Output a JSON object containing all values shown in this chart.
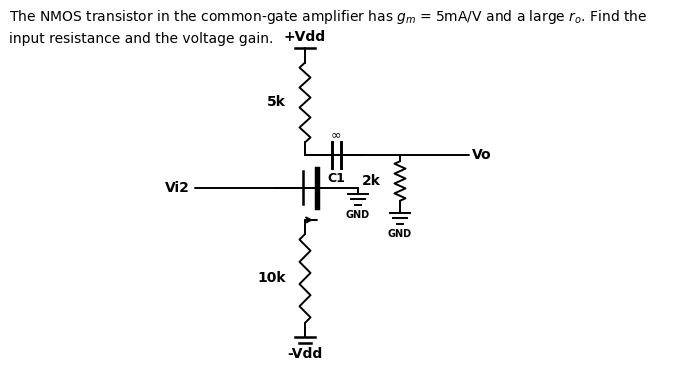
{
  "bg_color": "#ffffff",
  "line_color": "#000000",
  "resistor_5k_label": "5k",
  "resistor_10k_label": "10k",
  "resistor_2k_label": "2k",
  "cap_label": "C1",
  "inf_label": "∞",
  "vdd_top": "+Vdd",
  "vdd_bot": "-Vdd",
  "vi2_label": "Vi2",
  "vo_label": "Vo",
  "gnd_label": "GND",
  "title_line1": "The NMOS transistor in the common-gate amplifier has $g_m$ = 5mA/V and a large $r_o$. Find the",
  "title_line2": "input resistance and the voltage gain."
}
